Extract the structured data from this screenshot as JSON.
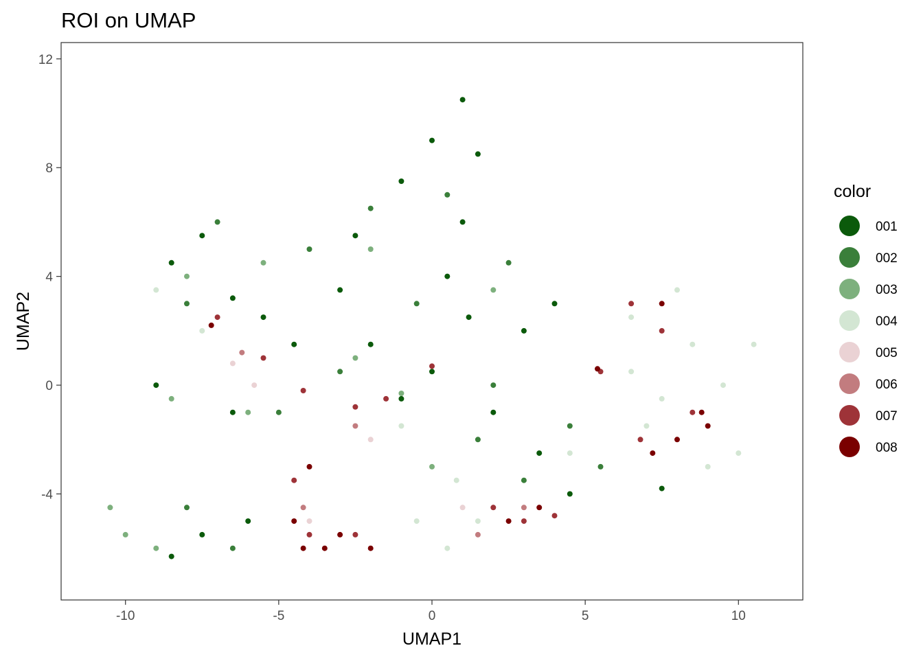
{
  "chart_data": {
    "type": "scatter",
    "title": "ROI on UMAP",
    "xlabel": "UMAP1",
    "ylabel": "UMAP2",
    "xlim": [
      -12.1,
      12.1
    ],
    "ylim": [
      -7.9,
      12.6
    ],
    "xticks": [
      -10,
      -5,
      0,
      5,
      10
    ],
    "yticks": [
      -4,
      0,
      4,
      8,
      12
    ],
    "xtick_labels": [
      "-10",
      "-5",
      "0",
      "5",
      "10"
    ],
    "ytick_labels": [
      "-4",
      "0",
      "4",
      "8",
      "12"
    ],
    "grid": false,
    "legend": {
      "title": "color",
      "placement": "right",
      "items": [
        {
          "label": "001",
          "color": "#0b5a0b"
        },
        {
          "label": "002",
          "color": "#3a7f3a"
        },
        {
          "label": "003",
          "color": "#7db07d"
        },
        {
          "label": "004",
          "color": "#d3e6d3"
        },
        {
          "label": "005",
          "color": "#ead2d4"
        },
        {
          "label": "006",
          "color": "#c27c7f"
        },
        {
          "label": "007",
          "color": "#9e3338"
        },
        {
          "label": "008",
          "color": "#7a0000"
        }
      ]
    },
    "series": [
      {
        "name": "001",
        "points": [
          [
            -7.5,
            5.5
          ],
          [
            -8.5,
            4.5
          ],
          [
            -6.5,
            3.2
          ],
          [
            -5.5,
            2.5
          ],
          [
            -4.5,
            1.5
          ],
          [
            -3.0,
            3.5
          ],
          [
            -2.5,
            5.5
          ],
          [
            -1.0,
            7.5
          ],
          [
            0.0,
            9.0
          ],
          [
            1.0,
            10.5
          ],
          [
            1.5,
            8.5
          ],
          [
            1.0,
            6.0
          ],
          [
            0.5,
            4.0
          ],
          [
            1.2,
            2.5
          ],
          [
            0.0,
            0.5
          ],
          [
            -1.0,
            -0.5
          ],
          [
            2.0,
            -1.0
          ],
          [
            3.5,
            -2.5
          ],
          [
            4.5,
            -4.0
          ],
          [
            7.5,
            -3.8
          ],
          [
            -8.5,
            -6.3
          ],
          [
            -7.5,
            -5.5
          ],
          [
            -6.0,
            -5.0
          ],
          [
            -9.0,
            0.0
          ],
          [
            -6.5,
            -1.0
          ],
          [
            -2.0,
            1.5
          ],
          [
            3.0,
            2.0
          ],
          [
            4.0,
            3.0
          ]
        ]
      },
      {
        "name": "002",
        "points": [
          [
            -8.0,
            3.0
          ],
          [
            -7.0,
            6.0
          ],
          [
            -4.0,
            5.0
          ],
          [
            -2.0,
            6.5
          ],
          [
            0.5,
            7.0
          ],
          [
            -0.5,
            3.0
          ],
          [
            2.5,
            4.5
          ],
          [
            1.5,
            -2.0
          ],
          [
            3.0,
            -3.5
          ],
          [
            5.5,
            -3.0
          ],
          [
            -3.0,
            0.5
          ],
          [
            -5.0,
            -1.0
          ],
          [
            -8.0,
            -4.5
          ],
          [
            -6.5,
            -6.0
          ],
          [
            2.0,
            0.0
          ],
          [
            4.5,
            -1.5
          ]
        ]
      },
      {
        "name": "003",
        "points": [
          [
            -10.0,
            -5.5
          ],
          [
            -9.0,
            -6.0
          ],
          [
            -10.5,
            -4.5
          ],
          [
            -6.0,
            -1.0
          ],
          [
            -8.5,
            -0.5
          ],
          [
            -1.0,
            -0.3
          ],
          [
            -2.5,
            1.0
          ],
          [
            -8.0,
            4.0
          ],
          [
            -5.5,
            4.5
          ],
          [
            -2.0,
            5.0
          ],
          [
            2.0,
            3.5
          ],
          [
            0.0,
            -3.0
          ]
        ]
      },
      {
        "name": "004",
        "points": [
          [
            6.5,
            0.5
          ],
          [
            7.5,
            -0.5
          ],
          [
            8.5,
            1.5
          ],
          [
            9.5,
            0.0
          ],
          [
            10.0,
            -2.5
          ],
          [
            8.0,
            3.5
          ],
          [
            6.5,
            2.5
          ],
          [
            7.0,
            -1.5
          ],
          [
            9.0,
            -3.0
          ],
          [
            10.5,
            1.5
          ],
          [
            1.5,
            -5.0
          ],
          [
            0.5,
            -6.0
          ],
          [
            -0.5,
            -5.0
          ],
          [
            0.8,
            -3.5
          ],
          [
            -9.0,
            3.5
          ],
          [
            -7.5,
            2.0
          ],
          [
            -1.0,
            -1.5
          ],
          [
            4.5,
            -2.5
          ]
        ]
      },
      {
        "name": "005",
        "points": [
          [
            -6.5,
            0.8
          ],
          [
            -5.8,
            0.0
          ],
          [
            -2.0,
            -2.0
          ],
          [
            -4.5,
            -3.5
          ],
          [
            1.0,
            -4.5
          ],
          [
            -4.0,
            -5.0
          ]
        ]
      },
      {
        "name": "006",
        "points": [
          [
            -6.2,
            1.2
          ],
          [
            -2.5,
            -1.5
          ],
          [
            -4.2,
            -4.5
          ],
          [
            1.5,
            -5.5
          ],
          [
            3.0,
            -4.5
          ]
        ]
      },
      {
        "name": "007",
        "points": [
          [
            -7.0,
            2.5
          ],
          [
            -5.5,
            1.0
          ],
          [
            -4.2,
            -0.2
          ],
          [
            -2.5,
            -0.8
          ],
          [
            -1.5,
            -0.5
          ],
          [
            0.0,
            0.7
          ],
          [
            -4.5,
            -3.5
          ],
          [
            -4.0,
            -5.5
          ],
          [
            -2.5,
            -5.5
          ],
          [
            2.0,
            -4.5
          ],
          [
            4.0,
            -4.8
          ],
          [
            3.0,
            -5.0
          ],
          [
            6.5,
            3.0
          ],
          [
            7.5,
            2.0
          ],
          [
            8.5,
            -1.0
          ],
          [
            6.8,
            -2.0
          ],
          [
            5.5,
            0.5
          ]
        ]
      },
      {
        "name": "008",
        "points": [
          [
            -7.2,
            2.2
          ],
          [
            -4.2,
            -6.0
          ],
          [
            -3.5,
            -6.0
          ],
          [
            -4.5,
            -5.0
          ],
          [
            -3.0,
            -5.5
          ],
          [
            -2.0,
            -6.0
          ],
          [
            -4.0,
            -3.0
          ],
          [
            2.5,
            -5.0
          ],
          [
            3.5,
            -4.5
          ],
          [
            7.5,
            3.0
          ],
          [
            9.0,
            -1.5
          ],
          [
            8.8,
            -1.0
          ],
          [
            7.2,
            -2.5
          ],
          [
            8.0,
            -2.0
          ],
          [
            5.4,
            0.6
          ]
        ]
      }
    ]
  }
}
